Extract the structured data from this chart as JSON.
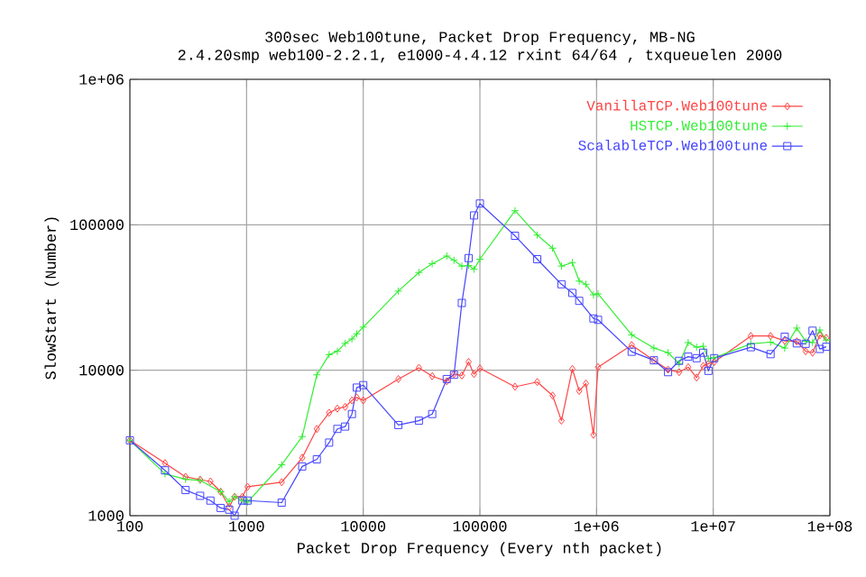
{
  "chart_data": {
    "type": "line",
    "title": "300sec  Web100tune, Packet Drop Frequency, MB-NG",
    "subtitle": "2.4.20smp web100-2.2.1, e1000-4.4.12 rxint 64/64 , txqueuelen 2000",
    "xlabel": "Packet Drop Frequency (Every nth packet)",
    "ylabel": "SlowStart (Number)",
    "log": "xy",
    "grid": true,
    "legend": "top right",
    "line_style": "solid",
    "xlim": [
      100,
      100000000
    ],
    "ylim": [
      1000,
      1000000
    ],
    "xticks": [
      100,
      1000,
      10000,
      100000,
      {
        "value": 1000000,
        "label": "1e+06"
      },
      {
        "value": 10000000,
        "label": "1e+07"
      },
      {
        "value": 100000000,
        "label": "1e+08"
      }
    ],
    "yticks": [
      1000,
      10000,
      100000,
      {
        "value": 1000000,
        "label": "1e+06"
      }
    ],
    "series": [
      {
        "name": "VanillaTCP.Web100tune",
        "color": "#ff4444",
        "marker": "diamond",
        "x": [
          100,
          200,
          300,
          400,
          490,
          600,
          710,
          790,
          920,
          1020,
          2000,
          3000,
          4000,
          5100,
          6000,
          7000,
          8000,
          8800,
          10000,
          20000,
          30000,
          39000,
          52000,
          60000,
          70000,
          80000,
          89000,
          100000,
          200000,
          310000,
          420000,
          500000,
          620000,
          710000,
          810000,
          940000,
          1030000,
          2000000,
          3100000,
          4100000,
          5100000,
          6100000,
          7200000,
          8200000,
          9100000,
          10200000,
          21000000,
          31000000,
          41000000,
          52000000,
          62000000,
          71000000,
          82000000,
          93000000
        ],
        "values": [
          3300,
          2300,
          1850,
          1770,
          1720,
          1460,
          1150,
          1350,
          1350,
          1580,
          1700,
          2500,
          3950,
          5100,
          5450,
          5600,
          6200,
          6500,
          6200,
          8700,
          10400,
          9100,
          8400,
          9400,
          9200,
          11400,
          9400,
          10300,
          7700,
          8300,
          6700,
          4500,
          10200,
          7200,
          8100,
          3600,
          10500,
          14900,
          11700,
          10100,
          9700,
          10500,
          8900,
          10700,
          11100,
          11400,
          17200,
          17200,
          15900,
          15800,
          13500,
          13200,
          17400,
          16700
        ]
      },
      {
        "name": "HSTCP.Web100tune",
        "color": "#33ee33",
        "marker": "cross",
        "x": [
          100,
          200,
          300,
          400,
          600,
          710,
          790,
          920,
          1020,
          2000,
          3000,
          4000,
          5100,
          6000,
          7000,
          8000,
          8800,
          10000,
          20000,
          30000,
          39000,
          52000,
          60000,
          70000,
          80000,
          89000,
          100000,
          200000,
          310000,
          420000,
          500000,
          620000,
          710000,
          810000,
          940000,
          1030000,
          2000000,
          3100000,
          4100000,
          5100000,
          6100000,
          7200000,
          8200000,
          9100000,
          10200000,
          21000000,
          31000000,
          41000000,
          52000000,
          62000000,
          71000000,
          82000000,
          93000000
        ],
        "values": [
          3300,
          1940,
          1780,
          1750,
          1460,
          1250,
          1350,
          1270,
          1240,
          2240,
          3500,
          9300,
          12800,
          13500,
          15300,
          16400,
          17800,
          19800,
          35000,
          47000,
          54000,
          61000,
          57000,
          52000,
          52500,
          49500,
          58000,
          125000,
          85000,
          69000,
          52000,
          55000,
          41000,
          39000,
          33000,
          33500,
          17500,
          14200,
          13200,
          11100,
          15500,
          14400,
          14600,
          12000,
          12200,
          15200,
          15600,
          14200,
          19500,
          15800,
          15500,
          18900,
          16100
        ]
      },
      {
        "name": "ScalableTCP.Web100tune",
        "color": "#4444ff",
        "marker": "square",
        "x": [
          100,
          200,
          300,
          400,
          490,
          600,
          710,
          790,
          920,
          1020,
          2000,
          3000,
          4000,
          5100,
          6000,
          7000,
          8000,
          8800,
          10000,
          20000,
          30000,
          39000,
          52000,
          60000,
          70000,
          80000,
          89000,
          100000,
          200000,
          310000,
          500000,
          620000,
          710000,
          940000,
          1030000,
          2000000,
          3100000,
          4100000,
          5100000,
          6100000,
          7200000,
          8200000,
          9100000,
          10200000,
          21000000,
          31000000,
          41000000,
          52000000,
          62000000,
          71000000,
          82000000,
          93000000
        ],
        "values": [
          3300,
          2050,
          1500,
          1370,
          1270,
          1130,
          1100,
          1000,
          1270,
          1270,
          1230,
          2180,
          2440,
          3180,
          3950,
          4100,
          5000,
          7600,
          7900,
          4200,
          4500,
          5000,
          8700,
          9300,
          29000,
          59000,
          116000,
          140000,
          84000,
          58000,
          39000,
          34000,
          30000,
          22700,
          22200,
          13400,
          11700,
          9700,
          11600,
          12400,
          12100,
          13200,
          9900,
          12100,
          14400,
          12900,
          17000,
          15300,
          15200,
          18700,
          14000,
          14500
        ]
      }
    ]
  }
}
